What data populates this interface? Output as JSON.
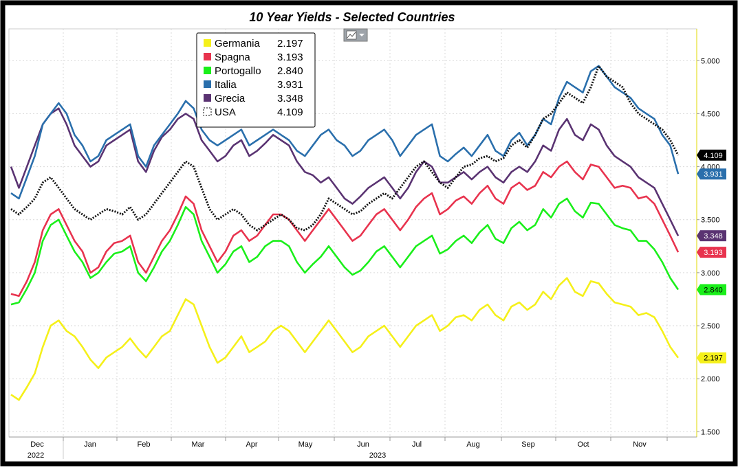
{
  "chart_data": {
    "type": "line",
    "title": "10 Year Yields - Selected Countries",
    "y_ticks": [
      "5.000",
      "4.500",
      "4.000",
      "3.500",
      "3.000",
      "2.500",
      "2.000",
      "1.500"
    ],
    "y_tick_values": [
      5.0,
      4.5,
      4.0,
      3.5,
      3.0,
      2.5,
      2.0,
      1.5
    ],
    "ylim": [
      1.45,
      5.3
    ],
    "grid": true,
    "legend_position": "top-left",
    "months": [
      "Dec",
      "Jan",
      "Feb",
      "Mar",
      "Apr",
      "May",
      "Jun",
      "Jul",
      "Aug",
      "Sep",
      "Oct",
      "Nov"
    ],
    "years": [
      "2022",
      "2023"
    ],
    "series": [
      {
        "name": "Germania",
        "last": "2.197",
        "color": "#f5f01a",
        "dotted": false,
        "values": [
          1.85,
          1.8,
          1.92,
          2.05,
          2.3,
          2.5,
          2.55,
          2.45,
          2.4,
          2.3,
          2.18,
          2.1,
          2.2,
          2.25,
          2.3,
          2.38,
          2.28,
          2.2,
          2.3,
          2.4,
          2.45,
          2.6,
          2.75,
          2.7,
          2.5,
          2.3,
          2.15,
          2.2,
          2.3,
          2.4,
          2.25,
          2.3,
          2.35,
          2.45,
          2.5,
          2.45,
          2.35,
          2.25,
          2.35,
          2.45,
          2.55,
          2.45,
          2.35,
          2.25,
          2.3,
          2.4,
          2.45,
          2.5,
          2.4,
          2.3,
          2.4,
          2.5,
          2.55,
          2.6,
          2.45,
          2.5,
          2.58,
          2.6,
          2.55,
          2.65,
          2.7,
          2.6,
          2.55,
          2.68,
          2.72,
          2.65,
          2.7,
          2.82,
          2.75,
          2.88,
          2.95,
          2.82,
          2.78,
          2.92,
          2.9,
          2.8,
          2.72,
          2.7,
          2.68,
          2.6,
          2.62,
          2.58,
          2.45,
          2.3,
          2.197
        ]
      },
      {
        "name": "Spagna",
        "last": "3.193",
        "color": "#e8334e",
        "dotted": false,
        "values": [
          2.8,
          2.78,
          2.92,
          3.1,
          3.4,
          3.55,
          3.6,
          3.45,
          3.3,
          3.2,
          3.0,
          3.05,
          3.2,
          3.28,
          3.3,
          3.35,
          3.1,
          3.0,
          3.15,
          3.3,
          3.4,
          3.55,
          3.72,
          3.65,
          3.4,
          3.25,
          3.1,
          3.2,
          3.35,
          3.4,
          3.3,
          3.35,
          3.45,
          3.55,
          3.55,
          3.5,
          3.4,
          3.3,
          3.4,
          3.5,
          3.6,
          3.5,
          3.4,
          3.3,
          3.35,
          3.45,
          3.55,
          3.6,
          3.5,
          3.4,
          3.5,
          3.62,
          3.7,
          3.75,
          3.55,
          3.6,
          3.68,
          3.72,
          3.65,
          3.75,
          3.82,
          3.7,
          3.65,
          3.8,
          3.85,
          3.78,
          3.82,
          3.95,
          3.9,
          4.0,
          4.05,
          3.95,
          3.88,
          4.02,
          4.0,
          3.9,
          3.8,
          3.82,
          3.8,
          3.7,
          3.72,
          3.65,
          3.5,
          3.35,
          3.193
        ]
      },
      {
        "name": "Portogallo",
        "last": "2.840",
        "color": "#1aef1a",
        "dotted": false,
        "values": [
          2.7,
          2.72,
          2.85,
          3.0,
          3.3,
          3.45,
          3.5,
          3.35,
          3.2,
          3.1,
          2.95,
          3.0,
          3.1,
          3.18,
          3.2,
          3.25,
          3.0,
          2.92,
          3.05,
          3.2,
          3.3,
          3.45,
          3.62,
          3.55,
          3.3,
          3.15,
          3.0,
          3.08,
          3.2,
          3.25,
          3.1,
          3.15,
          3.25,
          3.3,
          3.3,
          3.25,
          3.1,
          3.0,
          3.08,
          3.15,
          3.25,
          3.15,
          3.05,
          2.98,
          3.02,
          3.1,
          3.2,
          3.25,
          3.15,
          3.05,
          3.15,
          3.25,
          3.3,
          3.35,
          3.18,
          3.22,
          3.3,
          3.35,
          3.28,
          3.38,
          3.45,
          3.32,
          3.28,
          3.42,
          3.48,
          3.4,
          3.45,
          3.6,
          3.52,
          3.65,
          3.7,
          3.58,
          3.52,
          3.66,
          3.65,
          3.55,
          3.45,
          3.42,
          3.4,
          3.3,
          3.3,
          3.22,
          3.1,
          2.95,
          2.84
        ]
      },
      {
        "name": "Italia",
        "last": "3.931",
        "color": "#2a6fac",
        "dotted": false,
        "values": [
          3.75,
          3.7,
          3.9,
          4.1,
          4.4,
          4.5,
          4.6,
          4.5,
          4.3,
          4.2,
          4.05,
          4.1,
          4.25,
          4.3,
          4.35,
          4.4,
          4.1,
          4.0,
          4.2,
          4.3,
          4.4,
          4.5,
          4.62,
          4.55,
          4.35,
          4.25,
          4.2,
          4.25,
          4.3,
          4.35,
          4.2,
          4.25,
          4.3,
          4.35,
          4.3,
          4.25,
          4.15,
          4.1,
          4.2,
          4.3,
          4.35,
          4.25,
          4.2,
          4.1,
          4.15,
          4.25,
          4.3,
          4.35,
          4.25,
          4.1,
          4.2,
          4.3,
          4.35,
          4.4,
          4.1,
          4.05,
          4.12,
          4.18,
          4.1,
          4.2,
          4.3,
          4.15,
          4.1,
          4.25,
          4.32,
          4.2,
          4.3,
          4.45,
          4.4,
          4.65,
          4.8,
          4.75,
          4.7,
          4.9,
          4.95,
          4.85,
          4.75,
          4.7,
          4.65,
          4.55,
          4.5,
          4.45,
          4.3,
          4.2,
          3.931
        ]
      },
      {
        "name": "Grecia",
        "last": "3.348",
        "color": "#5a3372",
        "dotted": false,
        "values": [
          4.0,
          3.8,
          4.0,
          4.2,
          4.4,
          4.5,
          4.55,
          4.4,
          4.2,
          4.1,
          4.0,
          4.05,
          4.2,
          4.25,
          4.3,
          4.35,
          4.05,
          3.95,
          4.15,
          4.28,
          4.35,
          4.45,
          4.5,
          4.45,
          4.25,
          4.15,
          4.05,
          4.1,
          4.2,
          4.25,
          4.1,
          4.15,
          4.22,
          4.3,
          4.25,
          4.2,
          4.05,
          3.95,
          3.92,
          3.85,
          3.9,
          3.8,
          3.7,
          3.65,
          3.72,
          3.8,
          3.85,
          3.9,
          3.8,
          3.7,
          3.8,
          3.95,
          4.05,
          4.0,
          3.85,
          3.85,
          3.9,
          3.95,
          3.88,
          3.95,
          4.0,
          3.9,
          3.85,
          3.95,
          4.0,
          3.95,
          4.05,
          4.2,
          4.15,
          4.35,
          4.45,
          4.3,
          4.25,
          4.4,
          4.35,
          4.2,
          4.1,
          4.05,
          4.0,
          3.9,
          3.85,
          3.8,
          3.65,
          3.5,
          3.348
        ]
      },
      {
        "name": "USA",
        "last": "4.109",
        "color": "#111111",
        "dotted": true,
        "values": [
          3.6,
          3.55,
          3.62,
          3.7,
          3.85,
          3.9,
          3.8,
          3.7,
          3.6,
          3.55,
          3.5,
          3.55,
          3.6,
          3.58,
          3.55,
          3.62,
          3.5,
          3.55,
          3.65,
          3.75,
          3.85,
          3.95,
          4.05,
          4.0,
          3.8,
          3.6,
          3.5,
          3.55,
          3.6,
          3.55,
          3.45,
          3.4,
          3.45,
          3.5,
          3.55,
          3.5,
          3.42,
          3.4,
          3.45,
          3.55,
          3.7,
          3.65,
          3.6,
          3.55,
          3.58,
          3.65,
          3.7,
          3.75,
          3.7,
          3.8,
          3.9,
          4.0,
          4.05,
          3.95,
          3.85,
          3.8,
          3.9,
          4.0,
          4.02,
          4.08,
          4.1,
          4.05,
          4.08,
          4.2,
          4.25,
          4.18,
          4.3,
          4.45,
          4.5,
          4.6,
          4.7,
          4.65,
          4.6,
          4.75,
          4.95,
          4.85,
          4.8,
          4.75,
          4.6,
          4.5,
          4.45,
          4.4,
          4.35,
          4.25,
          4.109
        ]
      }
    ]
  },
  "toolbar": {
    "chart_type_icon": "line-chart-icon",
    "dropdown_icon": "chevron-down-icon"
  }
}
